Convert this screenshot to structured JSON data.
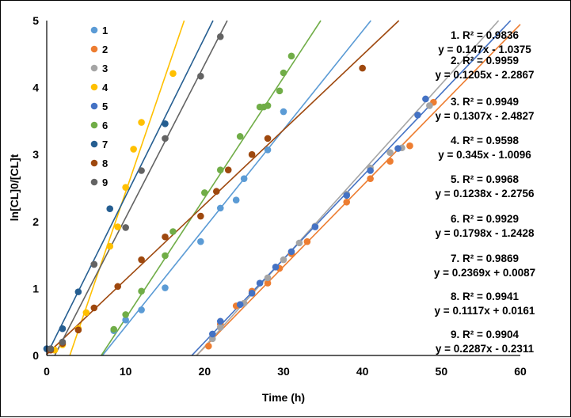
{
  "chart_data": {
    "type": "scatter",
    "xlabel": "Time (h)",
    "ylabel": "ln[CL]0/[CL]t",
    "xlim": [
      0,
      60
    ],
    "ylim": [
      0,
      5
    ],
    "xticks": [
      "0",
      "10",
      "20",
      "30",
      "40",
      "50",
      "60"
    ],
    "yticks": [
      "0",
      "1",
      "2",
      "3",
      "4",
      "5"
    ],
    "grid": false,
    "legend_position": "upper-left-inside",
    "series": [
      {
        "name": "1",
        "color": "#5B9BD5",
        "slope": 0.147,
        "intercept": -1.0375,
        "equation": "y = 0.147x - 1.0375",
        "r2": "1. R² = 0.9836",
        "points": [
          [
            8.5,
            0.37
          ],
          [
            10,
            0.53
          ],
          [
            12,
            0.68
          ],
          [
            15,
            1.01
          ],
          [
            19.5,
            1.7
          ],
          [
            22,
            2.2
          ],
          [
            24,
            2.32
          ],
          [
            25,
            2.64
          ],
          [
            28,
            3.07
          ],
          [
            30,
            3.64
          ]
        ]
      },
      {
        "name": "2",
        "color": "#ED7D31",
        "slope": 0.1205,
        "intercept": -2.2867,
        "equation": "y = 0.1205x - 2.2867",
        "r2": "2. R² = 0.9959",
        "points": [
          [
            20.5,
            0.14
          ],
          [
            22,
            0.47
          ],
          [
            24,
            0.74
          ],
          [
            26,
            0.96
          ],
          [
            28,
            1.08
          ],
          [
            29.5,
            1.3
          ],
          [
            31,
            1.52
          ],
          [
            33,
            1.7
          ],
          [
            38,
            2.29
          ],
          [
            41,
            2.64
          ],
          [
            43.5,
            2.9
          ],
          [
            46,
            3.13
          ],
          [
            49,
            3.78
          ]
        ]
      },
      {
        "name": "3",
        "color": "#A5A5A5",
        "slope": 0.1307,
        "intercept": -2.4827,
        "equation": "y = 0.1307x - 2.4827",
        "r2": "3. R² = 0.9949",
        "points": [
          [
            21,
            0.25
          ],
          [
            22,
            0.42
          ],
          [
            25,
            0.78
          ],
          [
            28,
            1.16
          ],
          [
            30,
            1.43
          ],
          [
            32,
            1.68
          ],
          [
            34,
            1.93
          ],
          [
            38,
            2.41
          ],
          [
            41,
            2.8
          ],
          [
            43.5,
            3.03
          ],
          [
            45,
            3.1
          ],
          [
            48.5,
            3.73
          ]
        ]
      },
      {
        "name": "4",
        "color": "#FFC000",
        "slope": 0.345,
        "intercept": -1.0096,
        "equation": "y = 0.345x - 1.0096",
        "r2": "4. R² = 0.9598",
        "points": [
          [
            1,
            0.08
          ],
          [
            2,
            0.16
          ],
          [
            4,
            0.4
          ],
          [
            5,
            0.64
          ],
          [
            8,
            1.63
          ],
          [
            9,
            1.92
          ],
          [
            10,
            2.51
          ],
          [
            11,
            3.08
          ],
          [
            12,
            3.48
          ],
          [
            16,
            4.21
          ]
        ]
      },
      {
        "name": "5",
        "color": "#4472C4",
        "slope": 0.1238,
        "intercept": -2.2756,
        "equation": "y = 0.1238x - 2.2756",
        "r2": "5. R² = 0.9968",
        "points": [
          [
            21,
            0.32
          ],
          [
            22,
            0.51
          ],
          [
            24.5,
            0.76
          ],
          [
            26,
            0.93
          ],
          [
            27,
            1.08
          ],
          [
            29,
            1.32
          ],
          [
            31,
            1.55
          ],
          [
            34,
            1.92
          ],
          [
            38,
            2.39
          ],
          [
            41,
            2.76
          ],
          [
            44.5,
            3.09
          ],
          [
            47,
            3.59
          ],
          [
            48,
            3.83
          ]
        ]
      },
      {
        "name": "6",
        "color": "#70AD47",
        "slope": 0.1798,
        "intercept": -1.2428,
        "equation": "y = 0.1798x - 1.2428",
        "r2": "6. R² = 0.9929",
        "points": [
          [
            8.5,
            0.39
          ],
          [
            10,
            0.61
          ],
          [
            12,
            0.96
          ],
          [
            15,
            1.49
          ],
          [
            16,
            1.85
          ],
          [
            20,
            2.43
          ],
          [
            22,
            2.77
          ],
          [
            24.5,
            3.27
          ],
          [
            27,
            3.71
          ],
          [
            27.5,
            3.71
          ],
          [
            28,
            3.73
          ],
          [
            29.5,
            3.95
          ],
          [
            30,
            4.22
          ],
          [
            31,
            4.47
          ]
        ]
      },
      {
        "name": "7",
        "color": "#255E91",
        "slope": 0.2369,
        "intercept": 0.0087,
        "equation": "y = 0.2369x + 0.0087",
        "r2": "7. R² = 0.9869",
        "points": [
          [
            0,
            0.1
          ],
          [
            2,
            0.4
          ],
          [
            4,
            0.95
          ],
          [
            6,
            1.36
          ],
          [
            8,
            2.19
          ],
          [
            15,
            3.46
          ]
        ]
      },
      {
        "name": "8",
        "color": "#9E480E",
        "slope": 0.1117,
        "intercept": 0.0161,
        "equation": "y = 0.1117x + 0.0161",
        "r2": "8. R² = 0.9941",
        "points": [
          [
            0.5,
            0.08
          ],
          [
            2,
            0.18
          ],
          [
            4,
            0.38
          ],
          [
            6,
            0.71
          ],
          [
            9,
            1.03
          ],
          [
            12,
            1.43
          ],
          [
            15,
            1.77
          ],
          [
            19.5,
            2.08
          ],
          [
            21.5,
            2.45
          ],
          [
            23,
            2.77
          ],
          [
            26,
            3.0
          ],
          [
            28,
            3.24
          ],
          [
            40,
            4.29
          ]
        ]
      },
      {
        "name": "9",
        "color": "#636363",
        "slope": 0.2287,
        "intercept": -0.2311,
        "equation": "y = 0.2287x - 0.2311",
        "r2": "9. R² = 0.9904",
        "points": [
          [
            0.5,
            0.1
          ],
          [
            2,
            0.2
          ],
          [
            6,
            1.36
          ],
          [
            10,
            1.91
          ],
          [
            12,
            2.76
          ],
          [
            15,
            3.24
          ],
          [
            19.5,
            4.17
          ],
          [
            22,
            4.76
          ]
        ]
      }
    ]
  }
}
